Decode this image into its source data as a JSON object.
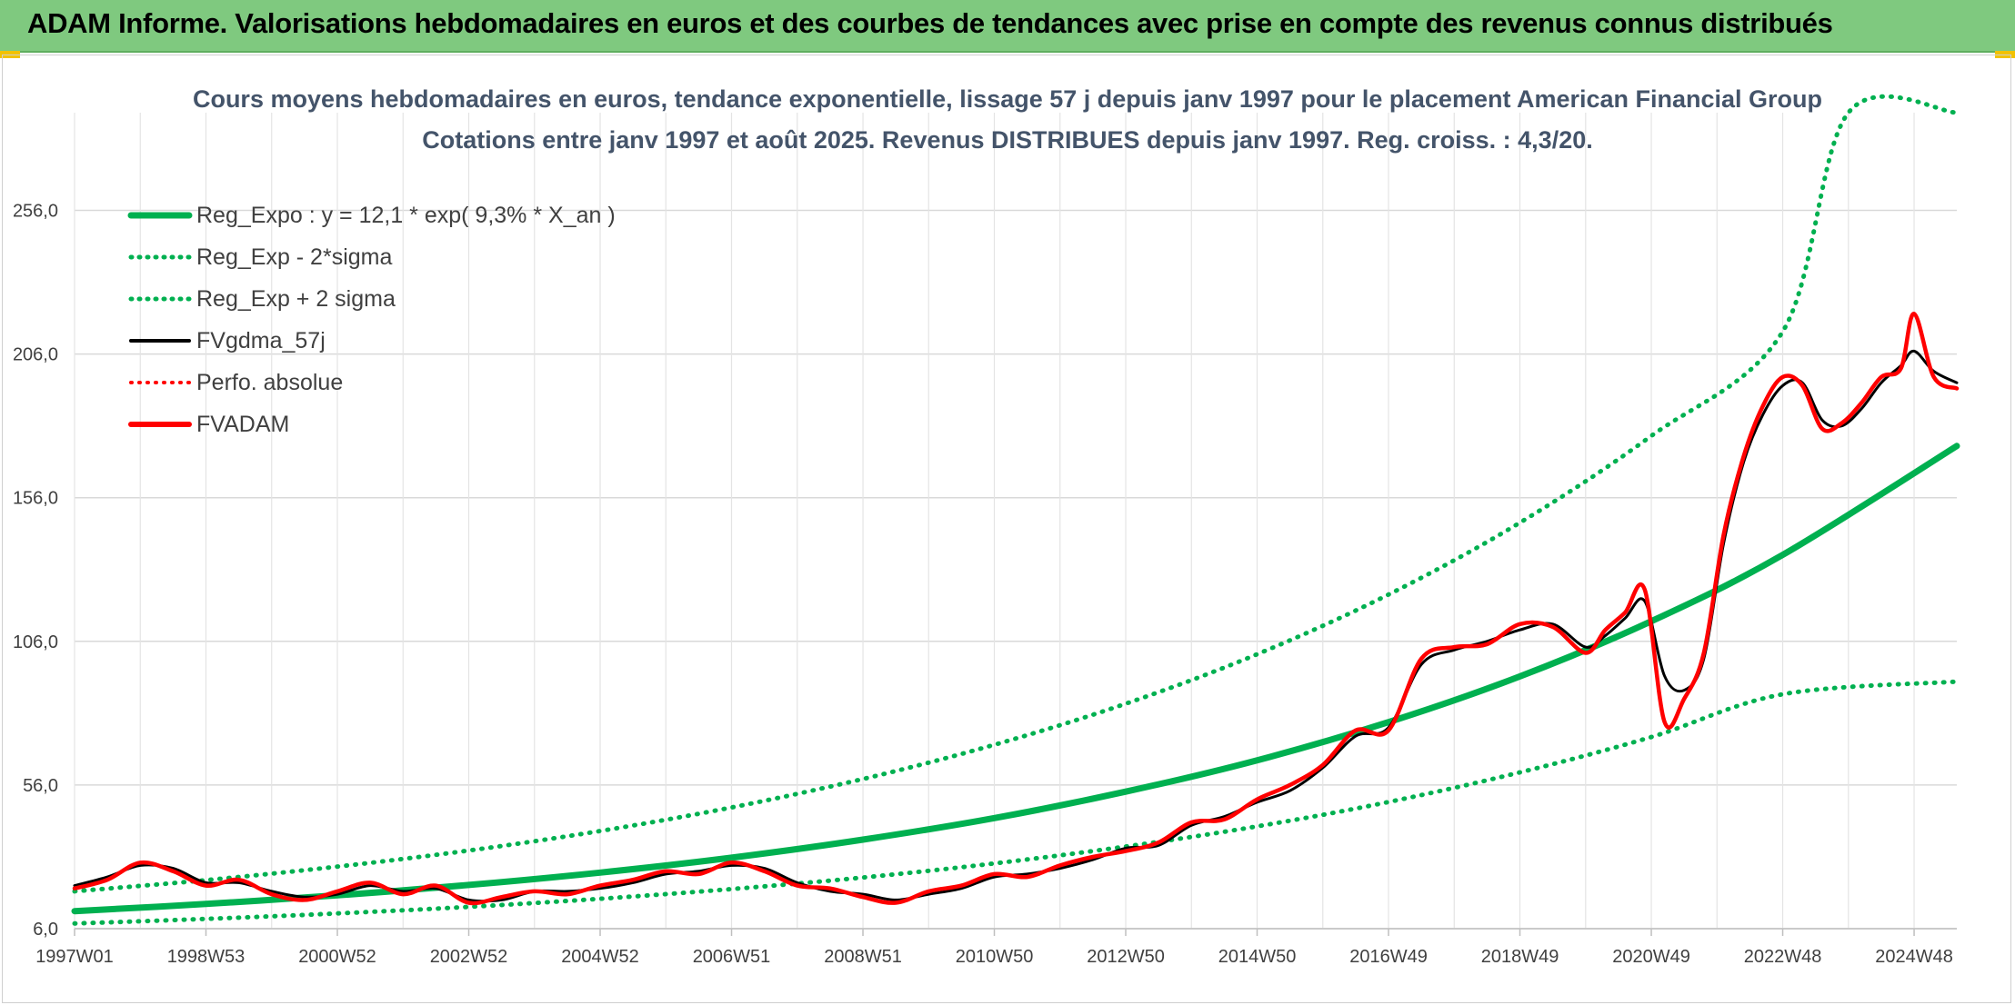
{
  "banner": {
    "title": "ADAM Informe. Valorisations hebdomadaires en euros et des courbes de tendances avec prise en compte des revenus connus distribués"
  },
  "colors": {
    "banner_bg": "#7fc97f",
    "trend": "#00b050",
    "fvgdma": "#000000",
    "fvadam": "#ff0000",
    "perfo": "#ff0000",
    "grid": "#d9d9d9"
  },
  "chart_data": {
    "type": "line",
    "title": "Cours moyens hebdomadaires en euros, tendance exponentielle, lissage 57 j depuis janv 1997 pour le placement American Financial Group",
    "subtitle": "Cotations entre janv 1997 et août 2025. Revenus DISTRIBUES depuis janv 1997. Reg. croiss. : 4,3/20.",
    "xlabel": "",
    "ylabel": "",
    "x_range": [
      1997.0,
      2025.65
    ],
    "ylim": [
      6,
      290
    ],
    "y_ticks": [
      "6,0",
      "56,0",
      "106,0",
      "156,0",
      "206,0",
      "256,0"
    ],
    "y_tick_values": [
      6,
      56,
      106,
      156,
      206,
      256
    ],
    "x_ticks": [
      "1997W01",
      "1998W53",
      "2000W52",
      "2002W52",
      "2004W52",
      "2006W51",
      "2008W51",
      "2010W50",
      "2012W50",
      "2014W50",
      "2016W49",
      "2018W49",
      "2020W49",
      "2022W48",
      "2024W48"
    ],
    "x_tick_values": [
      1997.0,
      1999.0,
      2001.0,
      2003.0,
      2005.0,
      2007.0,
      2009.0,
      2011.0,
      2013.0,
      2015.0,
      2017.0,
      2019.0,
      2021.0,
      2023.0,
      2025.0
    ],
    "grid": true,
    "legend_position": "top-left",
    "legend": [
      "Reg_Expo : y = 12,1 * exp( 9,3% *  X_an )",
      "Reg_Exp - 2*sigma",
      "Reg_Exp + 2 sigma",
      "FVgdma_57j",
      "Perfo. absolue",
      "FVADAM"
    ],
    "series": [
      {
        "name": "Reg_Expo : y = 12,1 * exp( 9,3% *  X_an )",
        "style": "solid-thick",
        "color": "#00b050",
        "x": [
          1997,
          1999,
          2001,
          2003,
          2005,
          2007,
          2009,
          2011,
          2013,
          2015,
          2017,
          2019,
          2021,
          2023,
          2025.65
        ],
        "y": [
          12.1,
          14.6,
          17.6,
          21.2,
          25.5,
          30.7,
          37.0,
          44.5,
          53.7,
          64.6,
          77.9,
          93.8,
          113.0,
          136.1,
          174.0
        ]
      },
      {
        "name": "Reg_Exp - 2*sigma",
        "style": "dotted",
        "color": "#00b050",
        "x": [
          1997,
          1999,
          2001,
          2003,
          2005,
          2007,
          2009,
          2011,
          2013,
          2015,
          2017,
          2019,
          2021,
          2023,
          2025.65
        ],
        "y": [
          7.8,
          9.4,
          11.3,
          13.6,
          16.4,
          19.8,
          23.8,
          28.7,
          34.6,
          41.6,
          50.1,
          60.4,
          72.7,
          87.6,
          92.0
        ]
      },
      {
        "name": "Reg_Exp + 2 sigma",
        "style": "dotted",
        "color": "#00b050",
        "x": [
          1997,
          1999,
          2001,
          2003,
          2005,
          2007,
          2009,
          2011,
          2013,
          2015,
          2017,
          2019,
          2021,
          2023,
          2024.0,
          2025.65
        ],
        "y": [
          19.0,
          22.9,
          27.6,
          33.2,
          40.0,
          48.2,
          58.1,
          70.0,
          84.3,
          101.5,
          122.3,
          147.3,
          177.5,
          213.8,
          290.0,
          290.0
        ]
      },
      {
        "name": "FVgdma_57j",
        "style": "solid",
        "color": "#000000",
        "x": [
          1997.0,
          1997.5,
          1998.0,
          1998.5,
          1999.0,
          1999.5,
          2000.0,
          2000.5,
          2001.0,
          2001.5,
          2002.0,
          2002.5,
          2003.0,
          2003.5,
          2004.0,
          2004.5,
          2005.0,
          2005.5,
          2006.0,
          2006.5,
          2007.0,
          2007.5,
          2008.0,
          2008.5,
          2009.0,
          2009.5,
          2010.0,
          2010.5,
          2011.0,
          2011.5,
          2012.0,
          2012.5,
          2013.0,
          2013.5,
          2014.0,
          2014.5,
          2015.0,
          2015.5,
          2016.0,
          2016.5,
          2017.0,
          2017.5,
          2018.0,
          2018.5,
          2019.0,
          2019.5,
          2020.0,
          2020.3,
          2020.6,
          2020.9,
          2021.2,
          2021.5,
          2021.8,
          2022.1,
          2022.4,
          2022.7,
          2023.0,
          2023.3,
          2023.6,
          2023.9,
          2024.2,
          2024.5,
          2024.8,
          2025.0,
          2025.3,
          2025.65
        ],
        "y": [
          21,
          24,
          28,
          27,
          22,
          22,
          19,
          17,
          18,
          21,
          19,
          20,
          16,
          16,
          19,
          19,
          20,
          22,
          25,
          26,
          28,
          27,
          22,
          19,
          18,
          16,
          18,
          20,
          24,
          25,
          27,
          30,
          34,
          35,
          42,
          45,
          50,
          54,
          62,
          73,
          76,
          98,
          103,
          106,
          110,
          112,
          104,
          108,
          114,
          120,
          94,
          89,
          100,
          140,
          168,
          185,
          195,
          196,
          183,
          181,
          187,
          196,
          202,
          207,
          200,
          196
        ]
      },
      {
        "name": "FVADAM",
        "style": "solid-thick",
        "color": "#ff0000",
        "x": [
          1997.0,
          1997.5,
          1998.0,
          1998.5,
          1999.0,
          1999.5,
          2000.0,
          2000.5,
          2001.0,
          2001.5,
          2002.0,
          2002.5,
          2003.0,
          2003.5,
          2004.0,
          2004.5,
          2005.0,
          2005.5,
          2006.0,
          2006.5,
          2007.0,
          2007.5,
          2008.0,
          2008.5,
          2009.0,
          2009.5,
          2010.0,
          2010.5,
          2011.0,
          2011.5,
          2012.0,
          2012.5,
          2013.0,
          2013.5,
          2014.0,
          2014.5,
          2015.0,
          2015.5,
          2016.0,
          2016.5,
          2017.0,
          2017.5,
          2018.0,
          2018.5,
          2019.0,
          2019.5,
          2020.0,
          2020.3,
          2020.6,
          2020.9,
          2021.2,
          2021.5,
          2021.8,
          2022.1,
          2022.4,
          2022.7,
          2023.0,
          2023.3,
          2023.6,
          2023.9,
          2024.2,
          2024.5,
          2024.8,
          2025.0,
          2025.3,
          2025.65
        ],
        "y": [
          20,
          23,
          29,
          26,
          21,
          23,
          18,
          16,
          19,
          22,
          18,
          21,
          15,
          17,
          19,
          18,
          21,
          23,
          26,
          25,
          29,
          26,
          21,
          20,
          17,
          15,
          19,
          21,
          25,
          24,
          28,
          31,
          33,
          36,
          43,
          44,
          51,
          56,
          63,
          75,
          75,
          100,
          104,
          105,
          112,
          111,
          102,
          110,
          116,
          124,
          78,
          86,
          102,
          143,
          170,
          188,
          198,
          195,
          180,
          182,
          189,
          198,
          201,
          220,
          198,
          194
        ]
      }
    ]
  }
}
